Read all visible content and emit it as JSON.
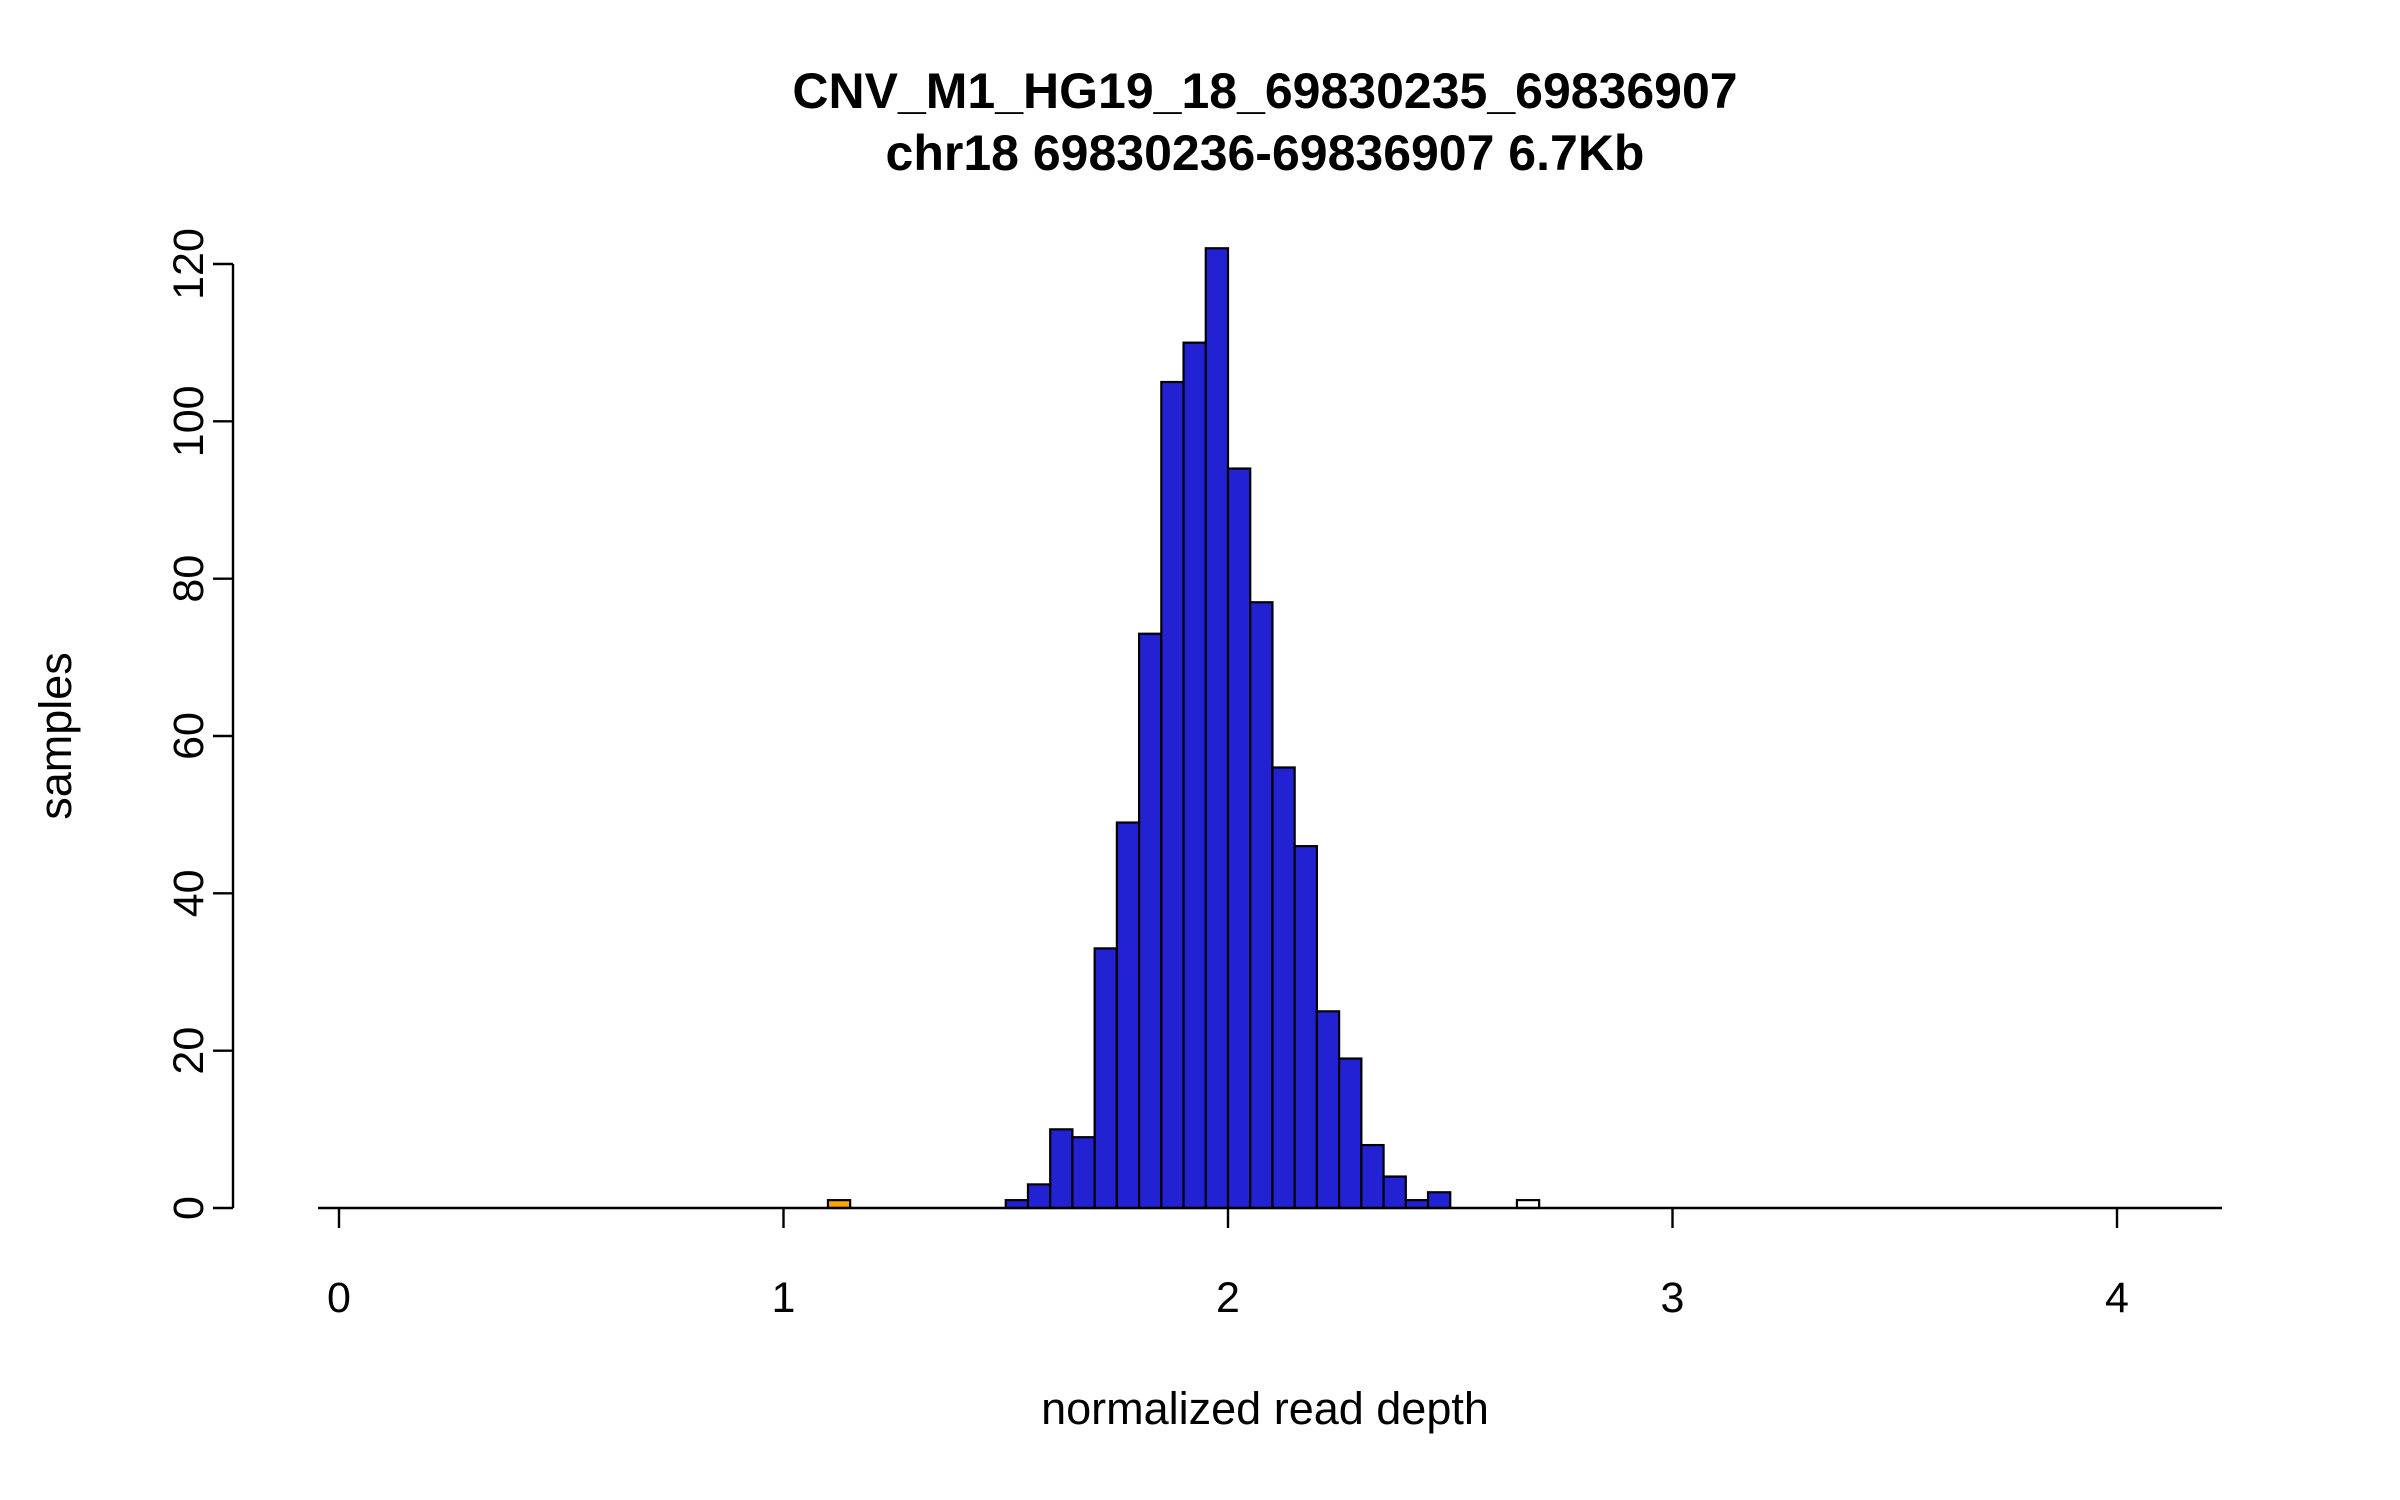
{
  "page": {
    "background": "#ffffff"
  },
  "chart_data": {
    "type": "bar",
    "subtype": "histogram",
    "title": "CNV_M1_HG19_18_69830235_69836907",
    "subtitle": "chr18 69830236-69836907 6.7Kb",
    "xlabel": "normalized read depth",
    "ylabel": "samples",
    "xlim": [
      0,
      4.25
    ],
    "ylim": [
      0,
      122
    ],
    "x_ticks": [
      0,
      1,
      2,
      3,
      4
    ],
    "y_ticks": [
      0,
      20,
      40,
      60,
      80,
      100,
      120
    ],
    "grid": false,
    "legend_position": "none",
    "bin_width": 0.05,
    "colors": {
      "bar_fill": "#2222d2",
      "bar_stroke": "#000000",
      "low_outlier_fill": "#ffa500",
      "high_outlier_fill": "#ffffff",
      "axis": "#000000"
    },
    "bars": [
      {
        "bin_start": 1.1,
        "count": 1,
        "fill": "#ffa500"
      },
      {
        "bin_start": 1.5,
        "count": 1,
        "fill": "#2222d2"
      },
      {
        "bin_start": 1.55,
        "count": 3,
        "fill": "#2222d2"
      },
      {
        "bin_start": 1.6,
        "count": 10,
        "fill": "#2222d2"
      },
      {
        "bin_start": 1.65,
        "count": 9,
        "fill": "#2222d2"
      },
      {
        "bin_start": 1.7,
        "count": 33,
        "fill": "#2222d2"
      },
      {
        "bin_start": 1.75,
        "count": 49,
        "fill": "#2222d2"
      },
      {
        "bin_start": 1.8,
        "count": 73,
        "fill": "#2222d2"
      },
      {
        "bin_start": 1.85,
        "count": 105,
        "fill": "#2222d2"
      },
      {
        "bin_start": 1.9,
        "count": 110,
        "fill": "#2222d2"
      },
      {
        "bin_start": 1.95,
        "count": 122,
        "fill": "#2222d2"
      },
      {
        "bin_start": 2.0,
        "count": 94,
        "fill": "#2222d2"
      },
      {
        "bin_start": 2.05,
        "count": 77,
        "fill": "#2222d2"
      },
      {
        "bin_start": 2.1,
        "count": 56,
        "fill": "#2222d2"
      },
      {
        "bin_start": 2.15,
        "count": 46,
        "fill": "#2222d2"
      },
      {
        "bin_start": 2.2,
        "count": 25,
        "fill": "#2222d2"
      },
      {
        "bin_start": 2.25,
        "count": 19,
        "fill": "#2222d2"
      },
      {
        "bin_start": 2.3,
        "count": 8,
        "fill": "#2222d2"
      },
      {
        "bin_start": 2.35,
        "count": 4,
        "fill": "#2222d2"
      },
      {
        "bin_start": 2.4,
        "count": 1,
        "fill": "#2222d2"
      },
      {
        "bin_start": 2.45,
        "count": 2,
        "fill": "#2222d2"
      },
      {
        "bin_start": 2.65,
        "count": 1,
        "fill": "#ffffff"
      }
    ]
  }
}
